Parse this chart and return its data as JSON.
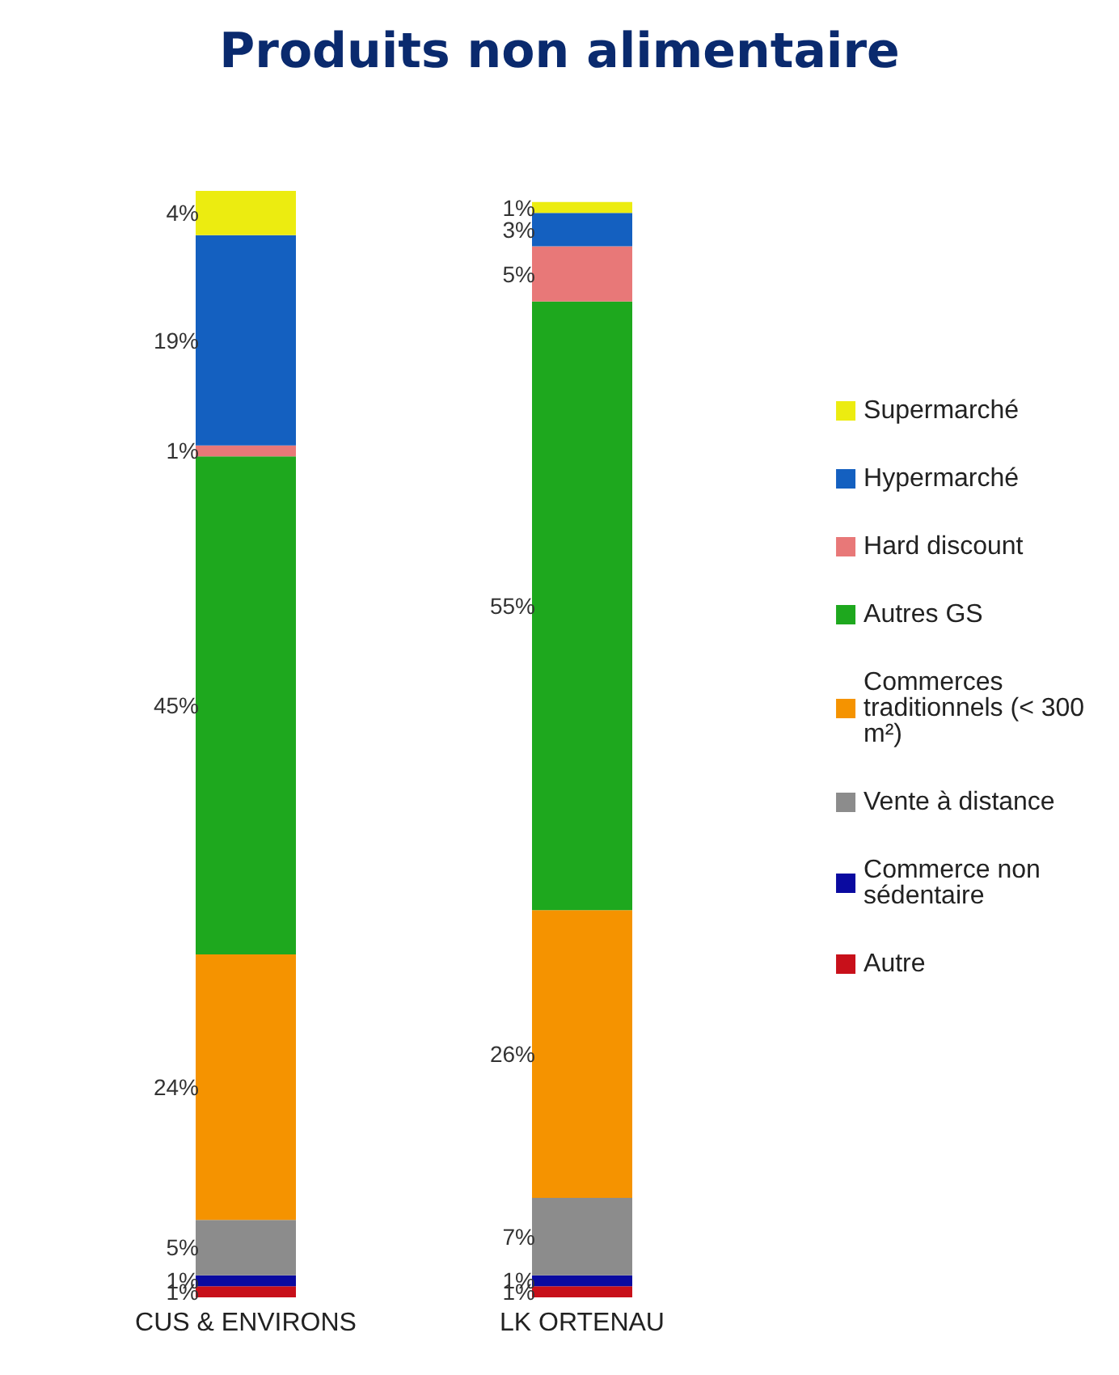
{
  "chart_data": {
    "type": "bar",
    "stacked": true,
    "title": "Produits non alimentaire",
    "categories": [
      "CUS & ENVIRONS",
      "LK ORTENAU"
    ],
    "legend": "right",
    "grid": false,
    "series": [
      {
        "name": "Autre",
        "color": "#c8101a",
        "values": [
          1,
          1
        ],
        "value_labels": [
          "1%",
          "1%"
        ]
      },
      {
        "name": "Commerce non sédentaire",
        "color": "#0a0aa0",
        "values": [
          1,
          1
        ],
        "value_labels": [
          "1%",
          "1%"
        ]
      },
      {
        "name": "Vente à distance",
        "color": "#8c8c8c",
        "values": [
          5,
          7
        ],
        "value_labels": [
          "5%",
          "7%"
        ]
      },
      {
        "name": "Commerces traditionnels (< 300 m²)",
        "color": "#f59300",
        "values": [
          24,
          26
        ],
        "value_labels": [
          "24%",
          "26%"
        ]
      },
      {
        "name": "Autres GS",
        "color": "#1ea81e",
        "values": [
          45,
          55
        ],
        "value_labels": [
          "45%",
          "55%"
        ]
      },
      {
        "name": "Hard discount",
        "color": "#e87878",
        "values": [
          1,
          5
        ],
        "value_labels": [
          "1%",
          "5%"
        ]
      },
      {
        "name": "Hypermarché",
        "color": "#1460c0",
        "values": [
          19,
          3
        ],
        "value_labels": [
          "19%",
          "3%"
        ]
      },
      {
        "name": "Supermarché",
        "color": "#ecec10",
        "values": [
          4,
          1
        ],
        "value_labels": [
          "4%",
          "1%"
        ]
      }
    ]
  }
}
